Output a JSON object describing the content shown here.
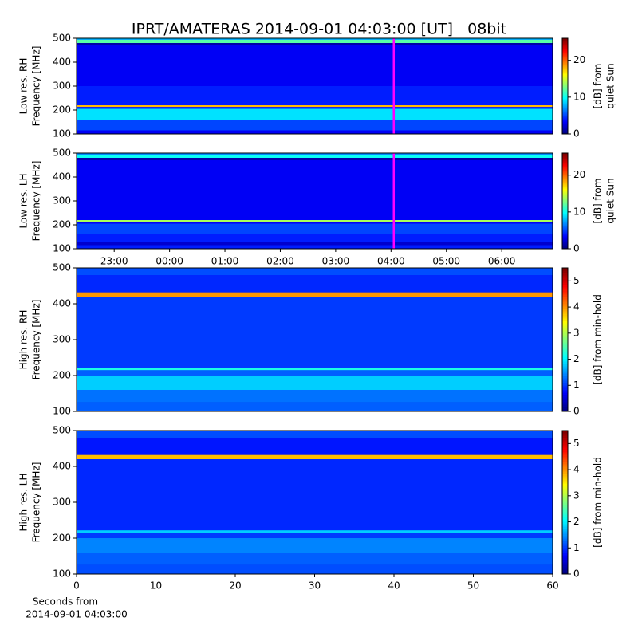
{
  "title": "IPRT/AMATERAS 2014-09-01 04:03:00 [UT]   08bit",
  "chart_data": [
    {
      "type": "heatmap",
      "cmap": "jet",
      "ylabel": [
        "Low res. RH",
        "Frequency [MHz]"
      ],
      "ylim": [
        100,
        500
      ],
      "yticks": [
        100,
        200,
        300,
        400,
        500
      ],
      "xlim": [
        22.32,
        30.92
      ],
      "marker_x": 28.05,
      "marker_color": "#ff00ff",
      "y_edges": [
        100,
        115,
        130,
        160,
        205,
        213,
        220,
        300,
        470,
        480,
        494,
        500
      ],
      "values": [
        3,
        5,
        5,
        9,
        4,
        18,
        4,
        3,
        1,
        12,
        8
      ],
      "colorbar": {
        "label": [
          "[dB] from",
          "quiet Sun"
        ],
        "lim": [
          0,
          26
        ],
        "ticks": [
          0,
          10,
          20
        ]
      }
    },
    {
      "type": "heatmap",
      "cmap": "jet",
      "ylabel": [
        "Low res. LH",
        "Frequency [MHz]"
      ],
      "ylim": [
        100,
        500
      ],
      "yticks": [
        100,
        200,
        300,
        400,
        500
      ],
      "xlim": [
        22.32,
        30.92
      ],
      "xticks": [
        {
          "value": 23,
          "label": "23:00"
        },
        {
          "value": 24,
          "label": "00:00"
        },
        {
          "value": 25,
          "label": "01:00"
        },
        {
          "value": 26,
          "label": "02:00"
        },
        {
          "value": 27,
          "label": "03:00"
        },
        {
          "value": 28,
          "label": "04:00"
        },
        {
          "value": 29,
          "label": "05:00"
        },
        {
          "value": 30,
          "label": "06:00"
        }
      ],
      "marker_x": 28.05,
      "marker_color": "#ff00ff",
      "y_edges": [
        100,
        115,
        130,
        160,
        205,
        213,
        220,
        300,
        470,
        480,
        494,
        500
      ],
      "values": [
        4,
        2,
        4,
        5,
        3,
        14,
        3,
        3,
        1,
        10,
        7
      ],
      "colorbar": {
        "label": [
          "[dB] from",
          "quiet Sun"
        ],
        "lim": [
          0,
          26
        ],
        "ticks": [
          0,
          10,
          20
        ]
      }
    },
    {
      "type": "heatmap",
      "cmap": "jet",
      "ylabel": [
        "High res. RH",
        "Frequency [MHz]"
      ],
      "ylim": [
        100,
        500
      ],
      "yticks": [
        100,
        200,
        300,
        400,
        500
      ],
      "xlim": [
        0,
        60
      ],
      "y_edges": [
        100,
        125,
        160,
        200,
        215,
        222,
        420,
        432,
        480,
        500
      ],
      "values": [
        1.2,
        1.3,
        1.8,
        1.2,
        2.2,
        1.0,
        4.0,
        0.9,
        1.1
      ],
      "colorbar": {
        "label": [
          "[dB] from min-hold"
        ],
        "lim": [
          0,
          5.5
        ],
        "ticks": [
          0,
          1,
          2,
          3,
          4,
          5
        ]
      }
    },
    {
      "type": "heatmap",
      "cmap": "jet",
      "ylabel": [
        "High res. LH",
        "Frequency [MHz]"
      ],
      "ylim": [
        100,
        500
      ],
      "yticks": [
        100,
        200,
        300,
        400,
        500
      ],
      "xlim": [
        0,
        60
      ],
      "xticks": [
        0,
        10,
        20,
        30,
        40,
        50,
        60
      ],
      "xlabel": [
        "Seconds from",
        "2014-09-01 04:03:00"
      ],
      "y_edges": [
        100,
        125,
        160,
        200,
        215,
        222,
        420,
        432,
        480,
        500
      ],
      "values": [
        1.1,
        1.2,
        1.4,
        1.0,
        1.8,
        0.9,
        3.8,
        0.8,
        1.1
      ],
      "colorbar": {
        "label": [
          "[dB] from min-hold"
        ],
        "lim": [
          0,
          5.5
        ],
        "ticks": [
          0,
          1,
          2,
          3,
          4,
          5
        ]
      }
    }
  ]
}
